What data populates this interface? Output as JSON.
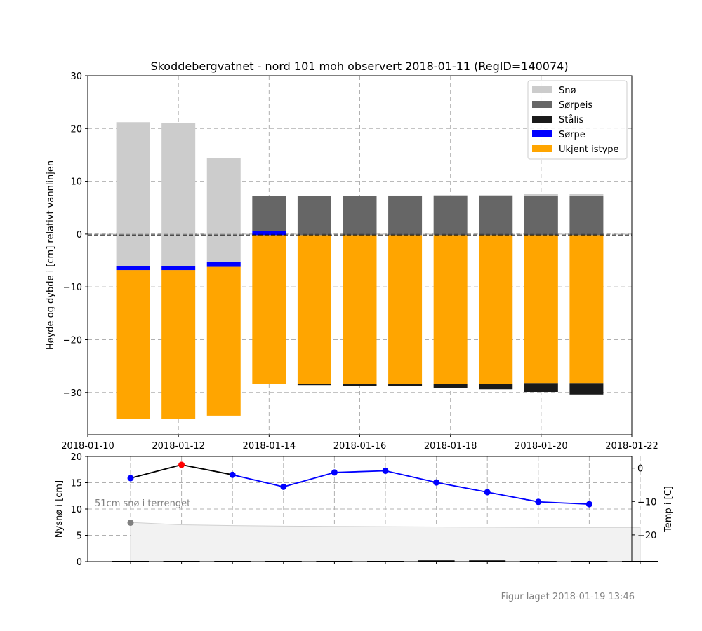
{
  "chart_data": [
    {
      "type": "bar",
      "title": "Skoddebergvatnet - nord 101 moh observert 2018-01-11 (RegID=140074)",
      "xlabel": "",
      "ylabel": "Høyde og dybde i [cm] relativt vannlinjen",
      "xlim": [
        "2018-01-10",
        "2018-01-22"
      ],
      "ylim": [
        -38,
        30
      ],
      "xticks": [
        "2018-01-10",
        "2018-01-12",
        "2018-01-14",
        "2018-01-16",
        "2018-01-18",
        "2018-01-20",
        "2018-01-22"
      ],
      "yticks": [
        -30,
        -20,
        -10,
        0,
        10,
        20,
        30
      ],
      "grid": true,
      "legend_position": "top-right",
      "legend": [
        {
          "label": "Snø",
          "color": "#cccccc"
        },
        {
          "label": "Sørpeis",
          "color": "#666666"
        },
        {
          "label": "Stålis",
          "color": "#1a1a1a"
        },
        {
          "label": "Sørpe",
          "color": "#0000ff"
        },
        {
          "label": "Ukjent istype",
          "color": "#ffa500"
        }
      ],
      "waterline": 0,
      "bars": [
        {
          "date": "2018-01-11",
          "segments": [
            {
              "type": "Ukjent istype",
              "bottom": -35.0,
              "top": -6.8
            },
            {
              "type": "Sørpe",
              "bottom": -6.8,
              "top": -6.0
            },
            {
              "type": "Snø",
              "bottom": -6.0,
              "top": 21.2
            }
          ]
        },
        {
          "date": "2018-01-12",
          "segments": [
            {
              "type": "Ukjent istype",
              "bottom": -35.0,
              "top": -6.8
            },
            {
              "type": "Sørpe",
              "bottom": -6.8,
              "top": -6.0
            },
            {
              "type": "Snø",
              "bottom": -6.0,
              "top": 21.0
            }
          ]
        },
        {
          "date": "2018-01-13",
          "segments": [
            {
              "type": "Ukjent istype",
              "bottom": -34.4,
              "top": -6.2
            },
            {
              "type": "Sørpe",
              "bottom": -6.2,
              "top": -5.3
            },
            {
              "type": "Snø",
              "bottom": -5.3,
              "top": 14.4
            }
          ]
        },
        {
          "date": "2018-01-14",
          "segments": [
            {
              "type": "Ukjent istype",
              "bottom": -28.4,
              "top": -0.2
            },
            {
              "type": "Sørpe",
              "bottom": -0.2,
              "top": 0.6
            },
            {
              "type": "Sørpeis",
              "bottom": 0.6,
              "top": 7.2
            }
          ]
        },
        {
          "date": "2018-01-15",
          "segments": [
            {
              "type": "Stålis",
              "bottom": -28.6,
              "top": -28.4
            },
            {
              "type": "Ukjent istype",
              "bottom": -28.4,
              "top": -0.2
            },
            {
              "type": "Sørpeis",
              "bottom": -0.2,
              "top": 7.2
            }
          ]
        },
        {
          "date": "2018-01-16",
          "segments": [
            {
              "type": "Stålis",
              "bottom": -28.8,
              "top": -28.4
            },
            {
              "type": "Ukjent istype",
              "bottom": -28.4,
              "top": -0.2
            },
            {
              "type": "Sørpeis",
              "bottom": -0.2,
              "top": 7.2
            }
          ]
        },
        {
          "date": "2018-01-17",
          "segments": [
            {
              "type": "Stålis",
              "bottom": -28.8,
              "top": -28.4
            },
            {
              "type": "Ukjent istype",
              "bottom": -28.4,
              "top": -0.2
            },
            {
              "type": "Sørpeis",
              "bottom": -0.2,
              "top": 7.2
            },
            {
              "type": "Snø",
              "bottom": 7.2,
              "top": 7.3
            }
          ]
        },
        {
          "date": "2018-01-18",
          "segments": [
            {
              "type": "Stålis",
              "bottom": -29.1,
              "top": -28.4
            },
            {
              "type": "Ukjent istype",
              "bottom": -28.4,
              "top": -0.2
            },
            {
              "type": "Sørpeis",
              "bottom": -0.2,
              "top": 7.2
            },
            {
              "type": "Snø",
              "bottom": 7.2,
              "top": 7.4
            }
          ]
        },
        {
          "date": "2018-01-19",
          "segments": [
            {
              "type": "Stålis",
              "bottom": -29.4,
              "top": -28.4
            },
            {
              "type": "Ukjent istype",
              "bottom": -28.4,
              "top": -0.2
            },
            {
              "type": "Sørpeis",
              "bottom": -0.2,
              "top": 7.2
            },
            {
              "type": "Snø",
              "bottom": 7.2,
              "top": 7.4
            }
          ]
        },
        {
          "date": "2018-01-20",
          "segments": [
            {
              "type": "Stålis",
              "bottom": -29.9,
              "top": -28.2
            },
            {
              "type": "Ukjent istype",
              "bottom": -28.2,
              "top": -0.2
            },
            {
              "type": "Sørpeis",
              "bottom": -0.2,
              "top": 7.2
            },
            {
              "type": "Snø",
              "bottom": 7.2,
              "top": 7.6
            }
          ]
        },
        {
          "date": "2018-01-21",
          "segments": [
            {
              "type": "Stålis",
              "bottom": -30.4,
              "top": -28.2
            },
            {
              "type": "Ukjent istype",
              "bottom": -28.2,
              "top": -0.2
            },
            {
              "type": "Sørpeis",
              "bottom": -0.2,
              "top": 7.3
            },
            {
              "type": "Snø",
              "bottom": 7.3,
              "top": 7.6
            }
          ]
        }
      ]
    },
    {
      "type": "line",
      "ylabel": "Nysnø i [cm]",
      "ylabel_right": "Temp i [C]",
      "ylim": [
        0,
        20
      ],
      "yticks": [
        0,
        5,
        10,
        15,
        20
      ],
      "ylim_right": [
        -28,
        3.5
      ],
      "yticks_right": [
        0,
        -10,
        -20
      ],
      "grid": true,
      "annotation": "51cm snø i terrenget",
      "dates": [
        "2018-01-10",
        "2018-01-11",
        "2018-01-12",
        "2018-01-13",
        "2018-01-14",
        "2018-01-15",
        "2018-01-16",
        "2018-01-17",
        "2018-01-18",
        "2018-01-19",
        "2018-01-20"
      ],
      "new_snow_cm": [
        0,
        0,
        0,
        0,
        0,
        0,
        0.1,
        0.1,
        0,
        0,
        0
      ],
      "snow_depth_area": [
        7.45,
        7.0,
        6.85,
        6.75,
        6.7,
        6.65,
        6.6,
        6.55,
        6.5,
        6.5,
        6.5
      ],
      "snow_depth_start_marker": 7.4,
      "temperature_c": [
        -3.0,
        1.0,
        -2.0,
        -5.6,
        -1.3,
        -0.8,
        -4.3,
        -7.2,
        -10.1,
        -10.8
      ],
      "temperature_dates": [
        "2018-01-10",
        "2018-01-11",
        "2018-01-12",
        "2018-01-13",
        "2018-01-14",
        "2018-01-15",
        "2018-01-16",
        "2018-01-17",
        "2018-01-18",
        "2018-01-19"
      ],
      "temperature_marker_colors": [
        "#0000ff",
        "#ff0000",
        "#0000ff",
        "#0000ff",
        "#0000ff",
        "#0000ff",
        "#0000ff",
        "#0000ff",
        "#0000ff",
        "#0000ff"
      ]
    }
  ],
  "footer": "Figur laget 2018-01-19 13:46"
}
